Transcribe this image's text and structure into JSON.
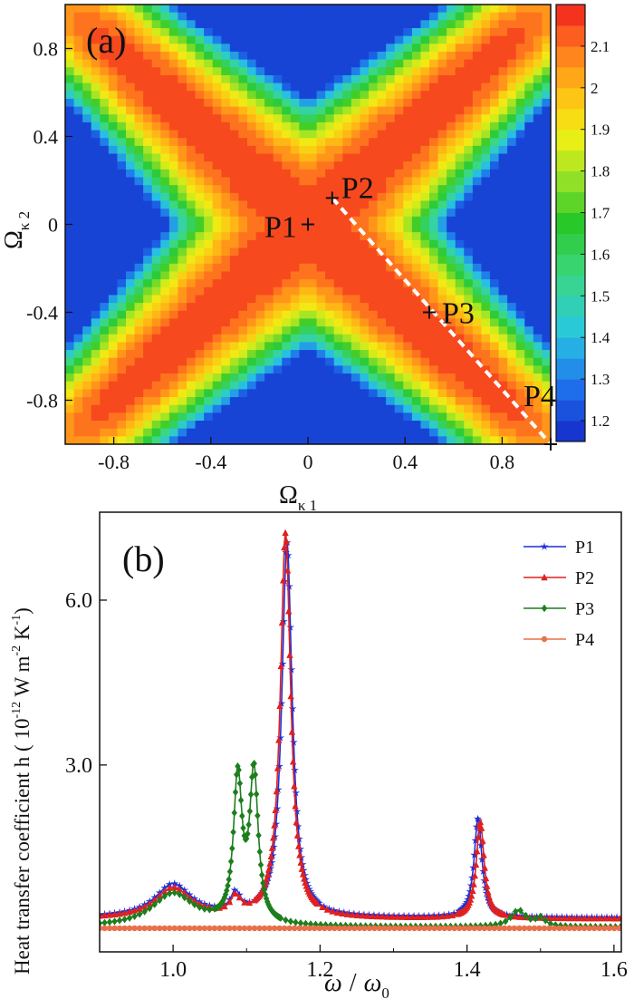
{
  "chart_data": [
    {
      "type": "heatmap",
      "panel_label": "(a)",
      "xlabel": {
        "main": "Ω",
        "sub": "κ 1"
      },
      "ylabel": {
        "main": "Ω",
        "sub": "κ 2"
      },
      "xlim": [
        -1,
        1
      ],
      "ylim": [
        -1,
        1
      ],
      "x_ticks": [
        -0.8,
        -0.4,
        0,
        0.4,
        0.8
      ],
      "y_ticks": [
        0.8,
        0.4,
        0,
        -0.4,
        -0.8
      ],
      "x_tick_labels": [
        "-0.8",
        "-0.4",
        "0",
        "0.4",
        "0.8"
      ],
      "y_tick_labels": [
        "0.8",
        "0.4",
        "0",
        "-0.4",
        "-0.8"
      ],
      "colorbar": {
        "range": [
          1.15,
          2.2
        ],
        "ticks": [
          2.1,
          2,
          1.9,
          1.8,
          1.7,
          1.6,
          1.5,
          1.4,
          1.3,
          1.2
        ],
        "tick_labels": [
          "2.1",
          "2",
          "1.9",
          "1.8",
          "1.7",
          "1.6",
          "1.5",
          "1.4",
          "1.3",
          "1.2"
        ]
      },
      "points": [
        {
          "name": "P1",
          "x": 0.0,
          "y": 0.0
        },
        {
          "name": "P2",
          "x": 0.1,
          "y": 0.12
        },
        {
          "name": "P3",
          "x": 0.5,
          "y": -0.4
        },
        {
          "name": "P4",
          "x": 1.0,
          "y": -1.0
        }
      ],
      "dashed_path": [
        [
          0.1,
          0.12
        ],
        [
          1.0,
          -1.0
        ]
      ]
    },
    {
      "type": "line",
      "panel_label": "(b)",
      "title": "",
      "xlabel": {
        "omega": "ω",
        "slash": "/",
        "omega0": "ω",
        "sub0": "0"
      },
      "ylabel": {
        "text": "Heat transfer coefficient h ( 10",
        "exp1": "-12",
        "w": " W m",
        "exp2": "-2",
        "k": " K",
        "exp3": "-1",
        "close": ")"
      },
      "xlim": [
        0.9,
        1.61
      ],
      "ylim": [
        -0.4,
        7.6
      ],
      "x_ticks": [
        1.0,
        1.2,
        1.4,
        1.6
      ],
      "x_tick_labels": [
        "1.0",
        "1.2",
        "1.4",
        "1.6"
      ],
      "y_ticks": [
        3.0,
        6.0
      ],
      "y_tick_labels": [
        "3.0",
        "6.0"
      ],
      "legend_position": "top-right",
      "series": [
        {
          "name": "P1",
          "color": "#1f2fd6",
          "marker": "star",
          "peaks": [
            [
              1.0,
              0.6,
              0.03
            ],
            [
              1.085,
              0.35,
              0.008
            ],
            [
              1.155,
              6.8,
              0.0085
            ],
            [
              1.415,
              1.8,
              0.0065
            ]
          ],
          "base": 0.22
        },
        {
          "name": "P2",
          "color": "#e02020",
          "marker": "triangle",
          "peaks": [
            [
              1.0,
              0.55,
              0.03
            ],
            [
              1.085,
              0.3,
              0.008
            ],
            [
              1.153,
              7.0,
              0.0085
            ],
            [
              1.418,
              1.75,
              0.0065
            ]
          ],
          "base": 0.2
        },
        {
          "name": "P3",
          "color": "#1e7e1e",
          "marker": "diamond",
          "peaks": [
            [
              1.0,
              0.6,
              0.035
            ],
            [
              1.088,
              2.6,
              0.007
            ],
            [
              1.11,
              2.7,
              0.007
            ],
            [
              1.47,
              0.3,
              0.012
            ],
            [
              1.5,
              0.15,
              0.008
            ]
          ],
          "base": 0.05
        },
        {
          "name": "P4",
          "color": "#e8704a",
          "marker": "circle",
          "peaks": [],
          "base": 0.03
        }
      ]
    }
  ]
}
